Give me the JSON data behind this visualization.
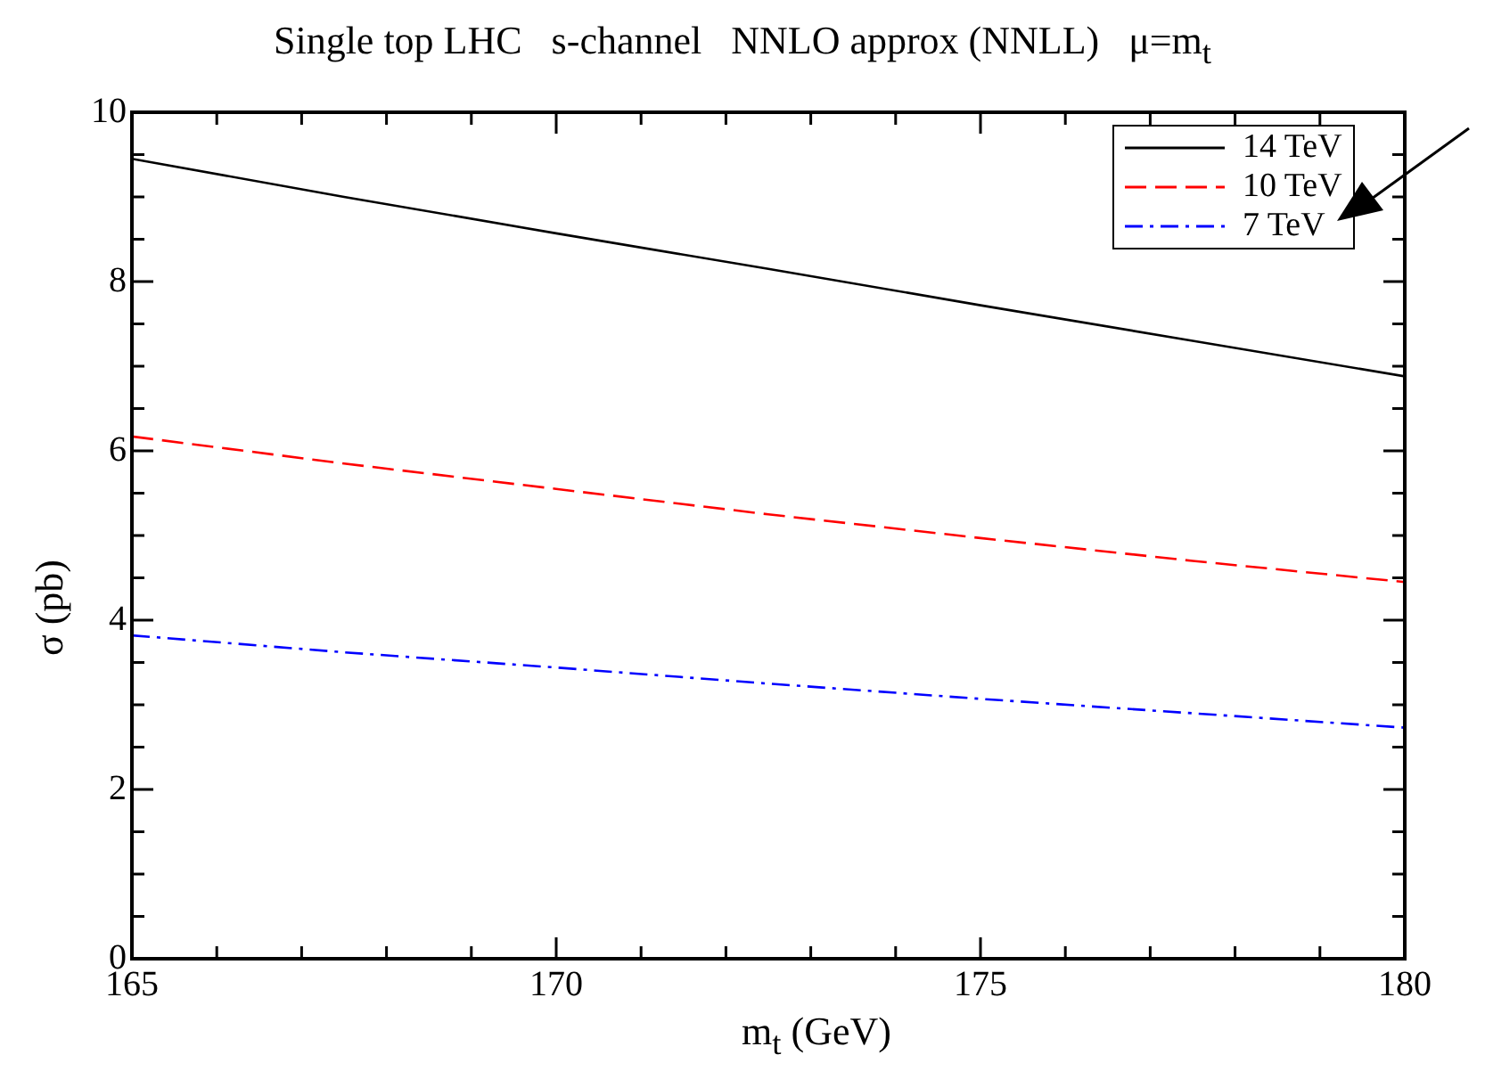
{
  "chart_data": {
    "type": "line",
    "title": "Single top LHC   s-channel   NNLO approx (NNLL)   μ=m$_{t}$",
    "xlabel": "m$_{t}$ (GeV)",
    "ylabel": "σ (pb)",
    "x": [
      165,
      167.5,
      170,
      172.5,
      175,
      177.5,
      180
    ],
    "series": [
      {
        "name": "14 TeV",
        "color": "#000000",
        "line_style": "solid",
        "values": [
          9.45,
          9.0,
          8.57,
          8.15,
          7.72,
          7.3,
          6.88
        ]
      },
      {
        "name": "10 TeV",
        "color": "#ff0000",
        "line_style": "dashed",
        "values": [
          6.17,
          5.85,
          5.55,
          5.25,
          4.97,
          4.7,
          4.45
        ]
      },
      {
        "name": "7 TeV",
        "color": "#0000ff",
        "line_style": "dashdot",
        "values": [
          3.82,
          3.62,
          3.44,
          3.25,
          3.07,
          2.9,
          2.73
        ]
      }
    ],
    "xlim": [
      165,
      180
    ],
    "xticks": [
      165,
      {
        "value": 166,
        "label": null
      },
      {
        "value": 167,
        "label": null
      },
      {
        "value": 168,
        "label": null
      },
      {
        "value": 169,
        "label": null
      },
      170,
      {
        "value": 171,
        "label": null
      },
      {
        "value": 172,
        "label": null
      },
      {
        "value": 173,
        "label": null
      },
      {
        "value": 174,
        "label": null
      },
      175,
      {
        "value": 176,
        "label": null
      },
      {
        "value": 177,
        "label": null
      },
      {
        "value": 178,
        "label": null
      },
      {
        "value": 179,
        "label": null
      },
      180
    ],
    "ylim": [
      0,
      10
    ],
    "yticks": [
      0,
      {
        "value": 0.5,
        "label": null
      },
      {
        "value": 1,
        "label": null
      },
      {
        "value": 1.5,
        "label": null
      },
      2,
      {
        "value": 2.5,
        "label": null
      },
      {
        "value": 3,
        "label": null
      },
      {
        "value": 3.5,
        "label": null
      },
      4,
      {
        "value": 4.5,
        "label": null
      },
      {
        "value": 5,
        "label": null
      },
      {
        "value": 5.5,
        "label": null
      },
      6,
      {
        "value": 6.5,
        "label": null
      },
      {
        "value": 7,
        "label": null
      },
      {
        "value": 7.5,
        "label": null
      },
      8,
      {
        "value": 8.5,
        "label": null
      },
      {
        "value": 9,
        "label": null
      },
      {
        "value": 9.5,
        "label": null
      },
      10
    ],
    "grid": false,
    "legend": "top right",
    "marker": "none"
  }
}
